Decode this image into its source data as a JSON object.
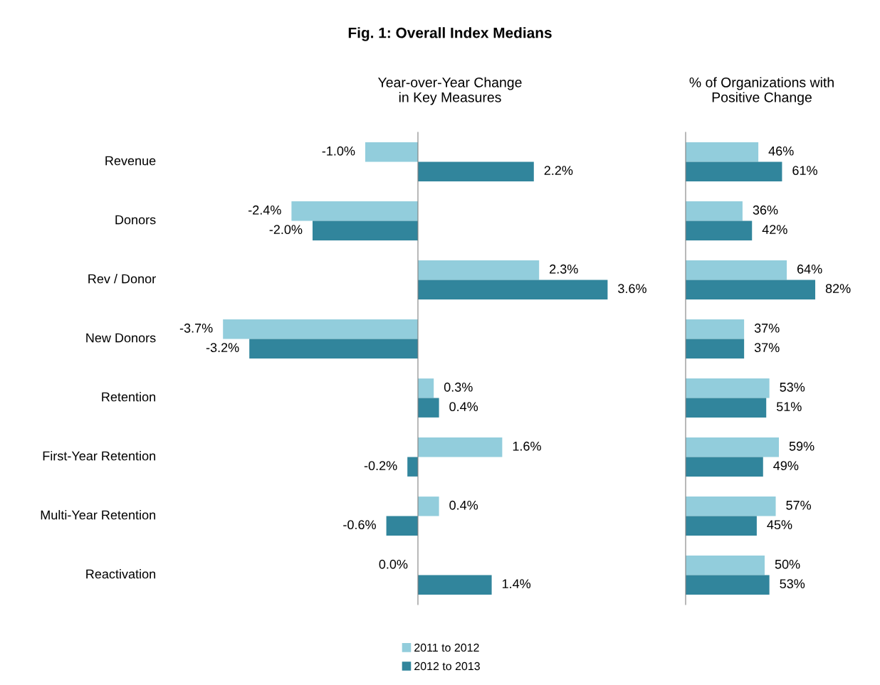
{
  "chart_data": [
    {
      "type": "bar",
      "orientation": "horizontal",
      "title": "Fig. 1: Overall Index Medians",
      "subtitle": "Year-over-Year Change\nin Key Measures",
      "categories": [
        "Revenue",
        "Donors",
        "Rev / Donor",
        "New Donors",
        "Retention",
        "First-Year Retention",
        "Multi-Year Retention",
        "Reactivation"
      ],
      "tick_labels": "y",
      "legend": "bottom",
      "series": [
        {
          "name": "2011 to 2012",
          "color": "#92cddc",
          "values": [
            -1.0,
            -2.4,
            2.3,
            -3.7,
            0.3,
            1.6,
            0.4,
            0.0
          ],
          "value_labels": [
            "-1.0%",
            "-2.4%",
            "2.3%",
            "-3.7%",
            "0.3%",
            "1.6%",
            "0.4%",
            "0.0%"
          ]
        },
        {
          "name": "2012 to 2013",
          "color": "#31859c",
          "values": [
            2.2,
            -2.0,
            3.6,
            -3.2,
            0.4,
            -0.2,
            -0.6,
            1.4
          ],
          "value_labels": [
            "2.2%",
            "-2.0%",
            "3.6%",
            "-3.2%",
            "0.4%",
            "-0.2%",
            "-0.6%",
            "1.4%"
          ]
        }
      ]
    },
    {
      "type": "bar",
      "orientation": "horizontal",
      "subtitle": "% of Organizations with\nPositive Change",
      "tick_labels": false,
      "series": [
        {
          "color": "#92cddc",
          "values": [
            46,
            36,
            64,
            37,
            53,
            59,
            57,
            50
          ],
          "value_labels": [
            "46%",
            "36%",
            "64%",
            "37%",
            "53%",
            "59%",
            "57%",
            "50%"
          ]
        },
        {
          "color": "#31859c",
          "values": [
            61,
            42,
            82,
            37,
            51,
            49,
            45,
            53
          ],
          "value_labels": [
            "61%",
            "42%",
            "82%",
            "37%",
            "51%",
            "49%",
            "45%",
            "53%"
          ]
        }
      ]
    }
  ]
}
